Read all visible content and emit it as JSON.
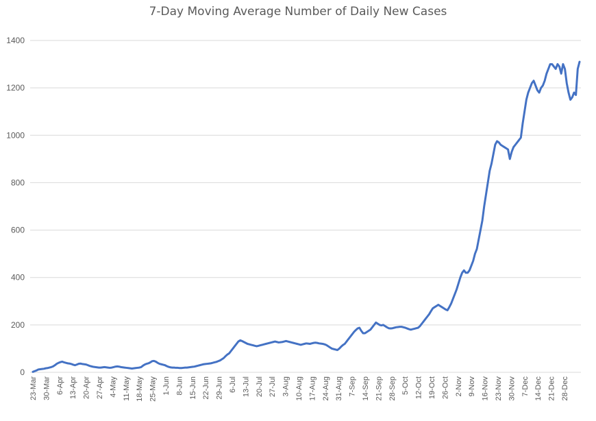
{
  "chart_data": {
    "type": "line",
    "title": "7-Day Moving Average Number of Daily New Cases",
    "xlabel": "",
    "ylabel": "",
    "ylim": [
      0,
      1400
    ],
    "yticks": [
      0,
      200,
      400,
      600,
      800,
      1000,
      1200,
      1400
    ],
    "grid": true,
    "legend": "none",
    "line_color": "#4472c4",
    "grid_color": "#d9d9d9",
    "text_color": "#595959",
    "x_tick_labels": [
      "23-Mar",
      "30-Mar",
      "6-Apr",
      "13-Apr",
      "20-Apr",
      "27-Apr",
      "4-May",
      "11-May",
      "18-May",
      "25-May",
      "1-Jun",
      "8-Jun",
      "15-Jun",
      "22-Jun",
      "29-Jun",
      "6-Jul",
      "13-Jul",
      "20-Jul",
      "27-Jul",
      "3-Aug",
      "10-Aug",
      "17-Aug",
      "24-Aug",
      "31-Aug",
      "7-Sep",
      "14-Sep",
      "21-Sep",
      "28-Sep",
      "5-Oct",
      "12-Oct",
      "19-Oct",
      "26-Oct",
      "2-Nov",
      "9-Nov",
      "16-Nov",
      "23-Nov",
      "30-Nov",
      "7-Dec",
      "14-Dec",
      "21-Dec",
      "28-Dec"
    ],
    "series": [
      {
        "values": [
          2,
          5,
          8,
          12,
          13,
          14,
          15,
          17,
          18,
          20,
          22,
          25,
          30,
          36,
          40,
          43,
          45,
          42,
          40,
          38,
          37,
          35,
          32,
          30,
          33,
          36,
          37,
          35,
          34,
          33,
          30,
          27,
          25,
          23,
          22,
          21,
          20,
          20,
          21,
          22,
          21,
          20,
          19,
          20,
          22,
          24,
          25,
          24,
          22,
          21,
          20,
          19,
          18,
          17,
          16,
          17,
          18,
          19,
          20,
          22,
          28,
          33,
          36,
          38,
          42,
          47,
          48,
          45,
          40,
          36,
          34,
          32,
          30,
          26,
          23,
          21,
          20,
          20,
          19,
          19,
          18,
          18,
          19,
          20,
          20,
          21,
          22,
          23,
          24,
          26,
          28,
          30,
          32,
          34,
          35,
          36,
          37,
          38,
          40,
          42,
          44,
          47,
          50,
          55,
          60,
          68,
          75,
          80,
          90,
          100,
          110,
          120,
          130,
          135,
          132,
          128,
          124,
          120,
          118,
          116,
          114,
          112,
          110,
          112,
          114,
          116,
          118,
          120,
          122,
          124,
          126,
          128,
          130,
          128,
          126,
          127,
          128,
          130,
          132,
          130,
          128,
          126,
          124,
          122,
          120,
          118,
          116,
          118,
          120,
          122,
          121,
          120,
          122,
          124,
          125,
          124,
          122,
          121,
          120,
          118,
          115,
          110,
          105,
          100,
          98,
          96,
          94,
          100,
          108,
          115,
          120,
          130,
          140,
          150,
          160,
          170,
          178,
          185,
          188,
          175,
          165,
          165,
          170,
          175,
          180,
          190,
          200,
          210,
          205,
          200,
          198,
          200,
          195,
          190,
          186,
          185,
          186,
          188,
          190,
          191,
          192,
          192,
          190,
          188,
          185,
          182,
          180,
          182,
          184,
          186,
          188,
          195,
          205,
          215,
          225,
          235,
          245,
          258,
          270,
          275,
          280,
          285,
          280,
          275,
          270,
          265,
          262,
          275,
          290,
          310,
          330,
          350,
          375,
          400,
          420,
          430,
          420,
          420,
          430,
          450,
          470,
          500,
          520,
          560,
          600,
          640,
          700,
          750,
          800,
          850,
          880,
          920,
          960,
          975,
          970,
          960,
          955,
          950,
          945,
          940,
          900,
          930,
          950,
          960,
          970,
          980,
          990,
          1050,
          1100,
          1150,
          1180,
          1200,
          1220,
          1230,
          1210,
          1190,
          1180,
          1200,
          1210,
          1230,
          1260,
          1280,
          1300,
          1300,
          1290,
          1280,
          1300,
          1290,
          1260,
          1300,
          1280,
          1220,
          1180,
          1150,
          1160,
          1180,
          1170,
          1280,
          1310
        ]
      }
    ]
  }
}
